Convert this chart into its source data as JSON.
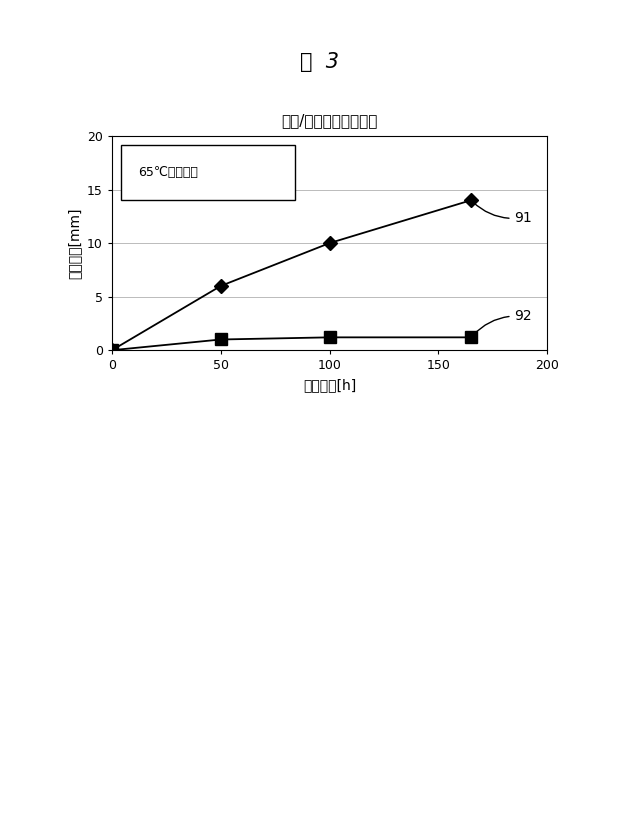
{
  "title_fig": "図  3",
  "title_chart": "床材/界面の水進入速度",
  "xlabel": "浸漬時間[h]",
  "ylabel": "進入距離[mm]",
  "legend_text": "65℃温水浸漬",
  "series_91": {
    "x": [
      0,
      50,
      100,
      165
    ],
    "y": [
      0,
      6,
      10,
      14
    ],
    "label": "91",
    "color": "#000000",
    "marker": "D",
    "markersize": 7
  },
  "series_92": {
    "x": [
      0,
      50,
      100,
      165
    ],
    "y": [
      0,
      1,
      1.2,
      1.2
    ],
    "label": "92",
    "color": "#000000",
    "marker": "s",
    "markersize": 8
  },
  "xlim": [
    0,
    200
  ],
  "ylim": [
    0,
    20
  ],
  "xticks": [
    0,
    50,
    100,
    150,
    200
  ],
  "yticks": [
    0,
    5,
    10,
    15,
    20
  ],
  "background_color": "#ffffff",
  "grid_color": "#bbbbbb"
}
